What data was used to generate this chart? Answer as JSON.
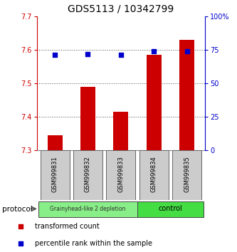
{
  "title": "GDS5113 / 10342799",
  "samples": [
    "GSM999831",
    "GSM999832",
    "GSM999833",
    "GSM999834",
    "GSM999835"
  ],
  "bar_values": [
    7.345,
    7.49,
    7.415,
    7.585,
    7.63
  ],
  "percentile_values": [
    71,
    72,
    71,
    74,
    74
  ],
  "y_min": 7.3,
  "y_max": 7.7,
  "y_ticks": [
    7.3,
    7.4,
    7.5,
    7.6,
    7.7
  ],
  "right_y_ticks": [
    0,
    25,
    50,
    75,
    100
  ],
  "bar_color": "#cc0000",
  "percentile_color": "#0000cc",
  "bar_bottom": 7.3,
  "groups": [
    {
      "label": "Grainyhead-like 2 depletion",
      "samples": [
        0,
        1,
        2
      ],
      "color": "#88ee88"
    },
    {
      "label": "control",
      "samples": [
        3,
        4
      ],
      "color": "#44dd44"
    }
  ],
  "protocol_label": "protocol",
  "legend_bar_label": "transformed count",
  "legend_pct_label": "percentile rank within the sample",
  "title_fontsize": 10,
  "tick_fontsize": 7,
  "sample_fontsize": 6,
  "legend_fontsize": 7,
  "background_color": "#ffffff",
  "sample_box_color": "#cccccc",
  "dotted_line_color": "#555555",
  "grid_lines": [
    7.4,
    7.5,
    7.6
  ]
}
